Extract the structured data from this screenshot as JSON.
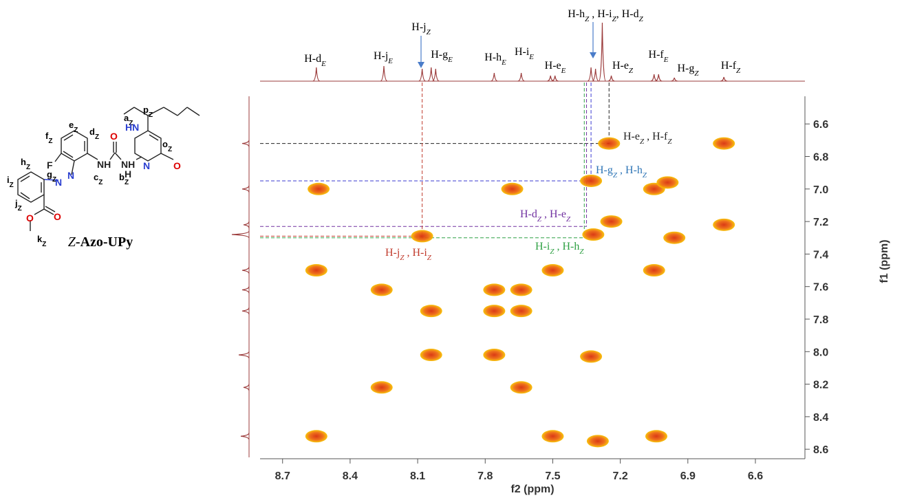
{
  "chart_data": {
    "type": "contour",
    "x_label": "f2 (ppm)",
    "y_label": "f1 (ppm)",
    "xlim": [
      8.8,
      6.38
    ],
    "ylim": [
      6.43,
      8.65
    ],
    "xticks": [
      8.7,
      8.4,
      8.1,
      7.8,
      7.5,
      7.2,
      6.9,
      6.6
    ],
    "yticks": [
      6.6,
      6.8,
      {
        "value": 7,
        "label": "7.0"
      },
      7.2,
      7.4,
      7.6,
      7.8,
      {
        "value": 8,
        "label": "8.0"
      },
      8.2,
      8.4,
      8.6
    ],
    "color": "#e8501a",
    "projection_color": "#9b3b3b",
    "peaks": {
      "x": [
        8.55,
        8.55,
        8.54,
        8.26,
        8.26,
        8.04,
        8.04,
        8.08,
        7.76,
        7.76,
        7.76,
        7.64,
        7.64,
        7.64,
        7.68,
        7.5,
        7.5,
        7.33,
        7.32,
        7.24,
        7.33,
        7.3,
        7.25,
        7.05,
        6.99,
        7.05,
        7.04,
        6.96,
        6.74,
        6.74
      ],
      "y": [
        7.5,
        8.52,
        7.0,
        7.62,
        8.22,
        7.75,
        8.02,
        7.29,
        7.62,
        7.75,
        8.02,
        7.62,
        7.75,
        8.22,
        7.0,
        7.5,
        8.52,
        6.95,
        7.28,
        7.2,
        8.03,
        8.55,
        6.72,
        7.0,
        6.96,
        7.5,
        8.52,
        7.3,
        6.72,
        7.22
      ]
    },
    "f2_projection": {
      "x": [
        8.55,
        8.25,
        8.08,
        8.04,
        8.02,
        7.76,
        7.64,
        7.51,
        7.49,
        7.33,
        7.31,
        7.28,
        7.24,
        7.05,
        7.03,
        6.96,
        6.74
      ],
      "intensity": [
        20,
        22,
        18,
        20,
        18,
        12,
        12,
        8,
        8,
        20,
        18,
        85,
        8,
        10,
        10,
        5,
        6
      ]
    },
    "f1_projection": {
      "y": [
        6.72,
        7.0,
        7.22,
        7.28,
        7.5,
        7.62,
        7.75,
        8.02,
        8.22,
        8.52
      ],
      "intensity": [
        10,
        10,
        8,
        25,
        10,
        10,
        10,
        15,
        8,
        12
      ]
    },
    "peak_labels": [
      [
        "H-d",
        "E"
      ],
      [
        "H-j",
        "E"
      ],
      [
        "H-j",
        "Z"
      ],
      [
        "H-g",
        "E"
      ],
      [
        "H-h",
        "E"
      ],
      [
        "H-i",
        "E"
      ],
      [
        "H-e",
        "E"
      ],
      [
        "H-h",
        "Z",
        " , H-i",
        "Z",
        ", H-d",
        "Z"
      ],
      [
        "H-e",
        "Z"
      ],
      [
        "H-f",
        "E"
      ],
      [
        "H-g",
        "Z"
      ],
      [
        "H-f",
        "Z"
      ]
    ],
    "correlations": [
      {
        "text": [
          "H-e",
          "Z",
          " , H-f",
          "Z"
        ],
        "x": 7.25,
        "y": 6.72,
        "color": "#222222"
      },
      {
        "text": [
          "H-g",
          "Z",
          " , H-h",
          "Z"
        ],
        "x": 7.33,
        "y": 6.95,
        "color": "#3a3ad0"
      },
      {
        "text": [
          "H-d",
          "Z",
          " , H-e",
          "Z"
        ],
        "x": 7.35,
        "y": 7.23,
        "color": "#7030a0"
      },
      {
        "text": [
          "H-i",
          "Z",
          " , H-h",
          "Z"
        ],
        "x": 7.36,
        "y": 7.3,
        "color": "#2ea043"
      },
      {
        "text": [
          "H-j",
          "Z",
          " , H-i",
          "Z"
        ],
        "x": 8.08,
        "y": 7.29,
        "color": "#c0392b"
      }
    ]
  },
  "structure": {
    "name": [
      "Z",
      "-Azo-UPy"
    ],
    "labels": [
      [
        "e",
        "Z"
      ],
      [
        "f",
        "Z"
      ],
      [
        "d",
        "Z"
      ],
      [
        "h",
        "Z"
      ],
      [
        "g",
        "Z"
      ],
      [
        "i",
        "Z"
      ],
      [
        "j",
        "Z"
      ],
      [
        "k",
        "Z"
      ],
      [
        "c",
        "Z"
      ],
      [
        "b",
        "Z"
      ],
      [
        "a",
        "Z"
      ],
      [
        "o",
        "Z"
      ],
      [
        "p",
        "Z"
      ]
    ],
    "atoms": [
      "F",
      "N",
      "N",
      "O",
      "O",
      "NH",
      "NH",
      "H",
      "O",
      "HN",
      "N",
      "O"
    ]
  }
}
